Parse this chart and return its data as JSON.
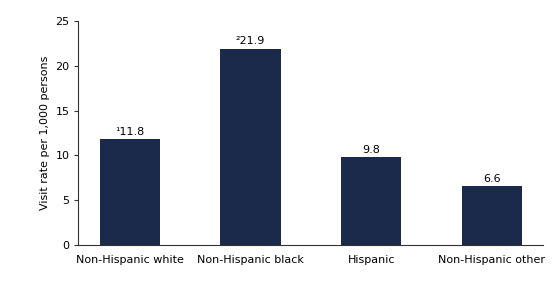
{
  "categories": [
    "Non-Hispanic white",
    "Non-Hispanic black",
    "Hispanic",
    "Non-Hispanic other"
  ],
  "values": [
    11.8,
    21.9,
    9.8,
    6.6
  ],
  "bar_color": "#1B2A4A",
  "ylabel": "Visit rate per 1,000 persons",
  "ylim": [
    0,
    25
  ],
  "yticks": [
    0,
    5,
    10,
    15,
    20,
    25
  ],
  "superscripts": [
    "¹",
    "²",
    "",
    ""
  ],
  "label_values": [
    "11.8",
    "21.9",
    "9.8",
    "6.6"
  ],
  "background_color": "#ffffff",
  "bar_width": 0.5,
  "label_fontsize": 8.0,
  "tick_fontsize": 8.0,
  "ylabel_fontsize": 8.0,
  "spine_color": "#333333"
}
